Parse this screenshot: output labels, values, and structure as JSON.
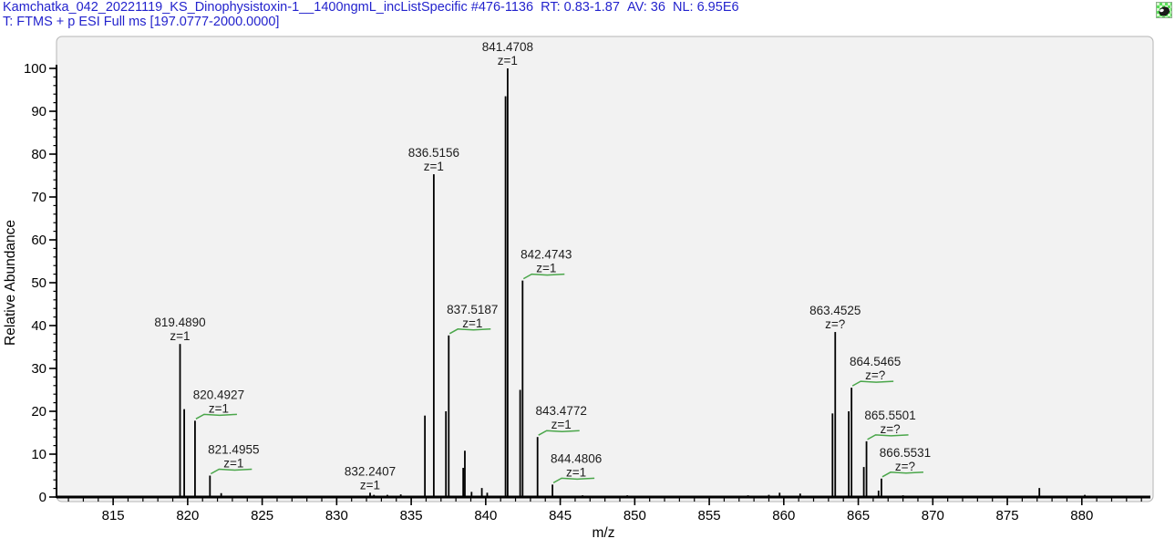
{
  "header": {
    "scan_title": "Kamchatka_042_20221119_KS_Dinophysistoxin-1__1400ngmL_incListSpecific",
    "scan_range": "#476-1136",
    "rt_label": "RT:",
    "rt_value": "0.83-1.87",
    "av_label": "AV:",
    "av_value": "36",
    "nl_label": "NL:",
    "nl_value": "6.95E6",
    "filter_line": "T: FTMS + p ESI Full ms [197.0777-2000.0000]"
  },
  "colors": {
    "header_blue": "#2323cd",
    "peak_black": "#000000",
    "label_text": "#1c1c1c",
    "flag_green": "#4aa64a",
    "panel_bg": "#f2f2f2",
    "panel_border": "#b5b5b5",
    "page_bg": "#ffffff"
  },
  "chart_data": {
    "type": "bar",
    "variant": "centroid-mass-spectrum",
    "xlabel": "m/z",
    "ylabel": "Relative Abundance",
    "xlim": [
      811.2,
      884.6
    ],
    "ylim": [
      0,
      100
    ],
    "grid": false,
    "x_major_ticks": [
      815,
      820,
      825,
      830,
      835,
      840,
      845,
      850,
      855,
      860,
      865,
      870,
      875,
      880
    ],
    "x_minor_step": 1,
    "y_major_ticks": [
      0,
      10,
      20,
      30,
      40,
      50,
      60,
      70,
      80,
      90,
      100
    ],
    "y_minor_step": 2,
    "labeled_peaks": [
      {
        "mz": 819.489,
        "mz_label": "819.4890",
        "intensity": 35.7,
        "charge_label": "z=1",
        "flagged": false
      },
      {
        "mz": 820.4927,
        "mz_label": "820.4927",
        "intensity": 17.8,
        "charge_label": "z=1",
        "flagged": true
      },
      {
        "mz": 821.4955,
        "mz_label": "821.4955",
        "intensity": 5.0,
        "charge_label": "z=1",
        "flagged": true
      },
      {
        "mz": 832.2407,
        "mz_label": "832.2407",
        "intensity": 1.0,
        "charge_label": "z=1",
        "flagged": false
      },
      {
        "mz": 836.5156,
        "mz_label": "836.5156",
        "intensity": 75.3,
        "charge_label": "z=1",
        "flagged": false
      },
      {
        "mz": 837.5187,
        "mz_label": "837.5187",
        "intensity": 37.7,
        "charge_label": "z=1",
        "flagged": true
      },
      {
        "mz": 841.4708,
        "mz_label": "841.4708",
        "intensity": 100.0,
        "charge_label": "z=1",
        "flagged": false
      },
      {
        "mz": 842.4743,
        "mz_label": "842.4743",
        "intensity": 50.5,
        "charge_label": "z=1",
        "flagged": true
      },
      {
        "mz": 843.4772,
        "mz_label": "843.4772",
        "intensity": 14.0,
        "charge_label": "z=1",
        "flagged": true
      },
      {
        "mz": 844.4806,
        "mz_label": "844.4806",
        "intensity": 2.9,
        "charge_label": "z=1",
        "flagged": true
      },
      {
        "mz": 863.4525,
        "mz_label": "863.4525",
        "intensity": 38.5,
        "charge_label": "z=?",
        "flagged": false
      },
      {
        "mz": 864.5465,
        "mz_label": "864.5465",
        "intensity": 25.5,
        "charge_label": "z=?",
        "flagged": true
      },
      {
        "mz": 865.5501,
        "mz_label": "865.5501",
        "intensity": 13.0,
        "charge_label": "z=?",
        "flagged": true
      },
      {
        "mz": 866.5531,
        "mz_label": "866.5531",
        "intensity": 4.3,
        "charge_label": "z=?",
        "flagged": true
      }
    ],
    "unlabeled_peaks": [
      [
        819.77,
        20.5
      ],
      [
        822.25,
        0.9
      ],
      [
        832.5,
        0.5
      ],
      [
        833.4,
        0.5
      ],
      [
        834.3,
        0.6
      ],
      [
        835.92,
        19.0
      ],
      [
        837.33,
        20.0
      ],
      [
        838.49,
        6.8
      ],
      [
        838.6,
        10.8
      ],
      [
        839.05,
        1.2
      ],
      [
        839.74,
        2.1
      ],
      [
        840.1,
        1.0
      ],
      [
        841.33,
        93.5
      ],
      [
        842.31,
        25.0
      ],
      [
        846.5,
        0.4
      ],
      [
        849.5,
        0.4
      ],
      [
        852.4,
        0.3
      ],
      [
        855.2,
        0.3
      ],
      [
        857.6,
        0.4
      ],
      [
        859.0,
        0.5
      ],
      [
        859.72,
        1.0
      ],
      [
        861.1,
        0.8
      ],
      [
        863.27,
        19.5
      ],
      [
        864.36,
        20.0
      ],
      [
        865.37,
        7.0
      ],
      [
        866.36,
        1.5
      ],
      [
        868.0,
        0.4
      ],
      [
        871.3,
        0.3
      ],
      [
        874.0,
        0.3
      ],
      [
        877.15,
        2.1
      ],
      [
        880.2,
        0.5
      ],
      [
        882.5,
        0.3
      ]
    ]
  }
}
